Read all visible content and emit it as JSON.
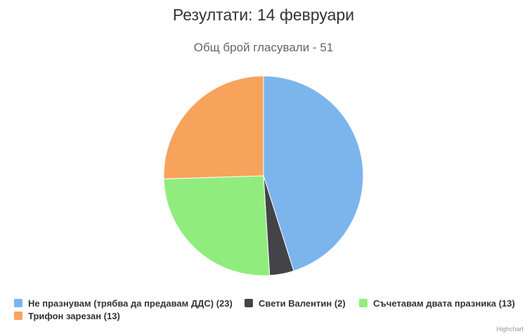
{
  "chart_data": {
    "type": "pie",
    "title": "Резултати: 14 февруари",
    "subtitle": "Общ брой гласували - 51",
    "series": [
      {
        "data": [
          {
            "label": "Не празнувам (трябва да предавам ДДС) (23)",
            "value": 23,
            "color": "#7cb5ec"
          },
          {
            "label": "Свети Валентин (2)",
            "value": 2,
            "color": "#434348"
          },
          {
            "label": "Съчетавам двата празника (13)",
            "value": 13,
            "color": "#90ed7d"
          },
          {
            "label": "Трифон зарезан (13)",
            "value": 13,
            "color": "#f7a35c"
          }
        ]
      }
    ],
    "legend_position": "bottom",
    "credits": "Highchart"
  }
}
